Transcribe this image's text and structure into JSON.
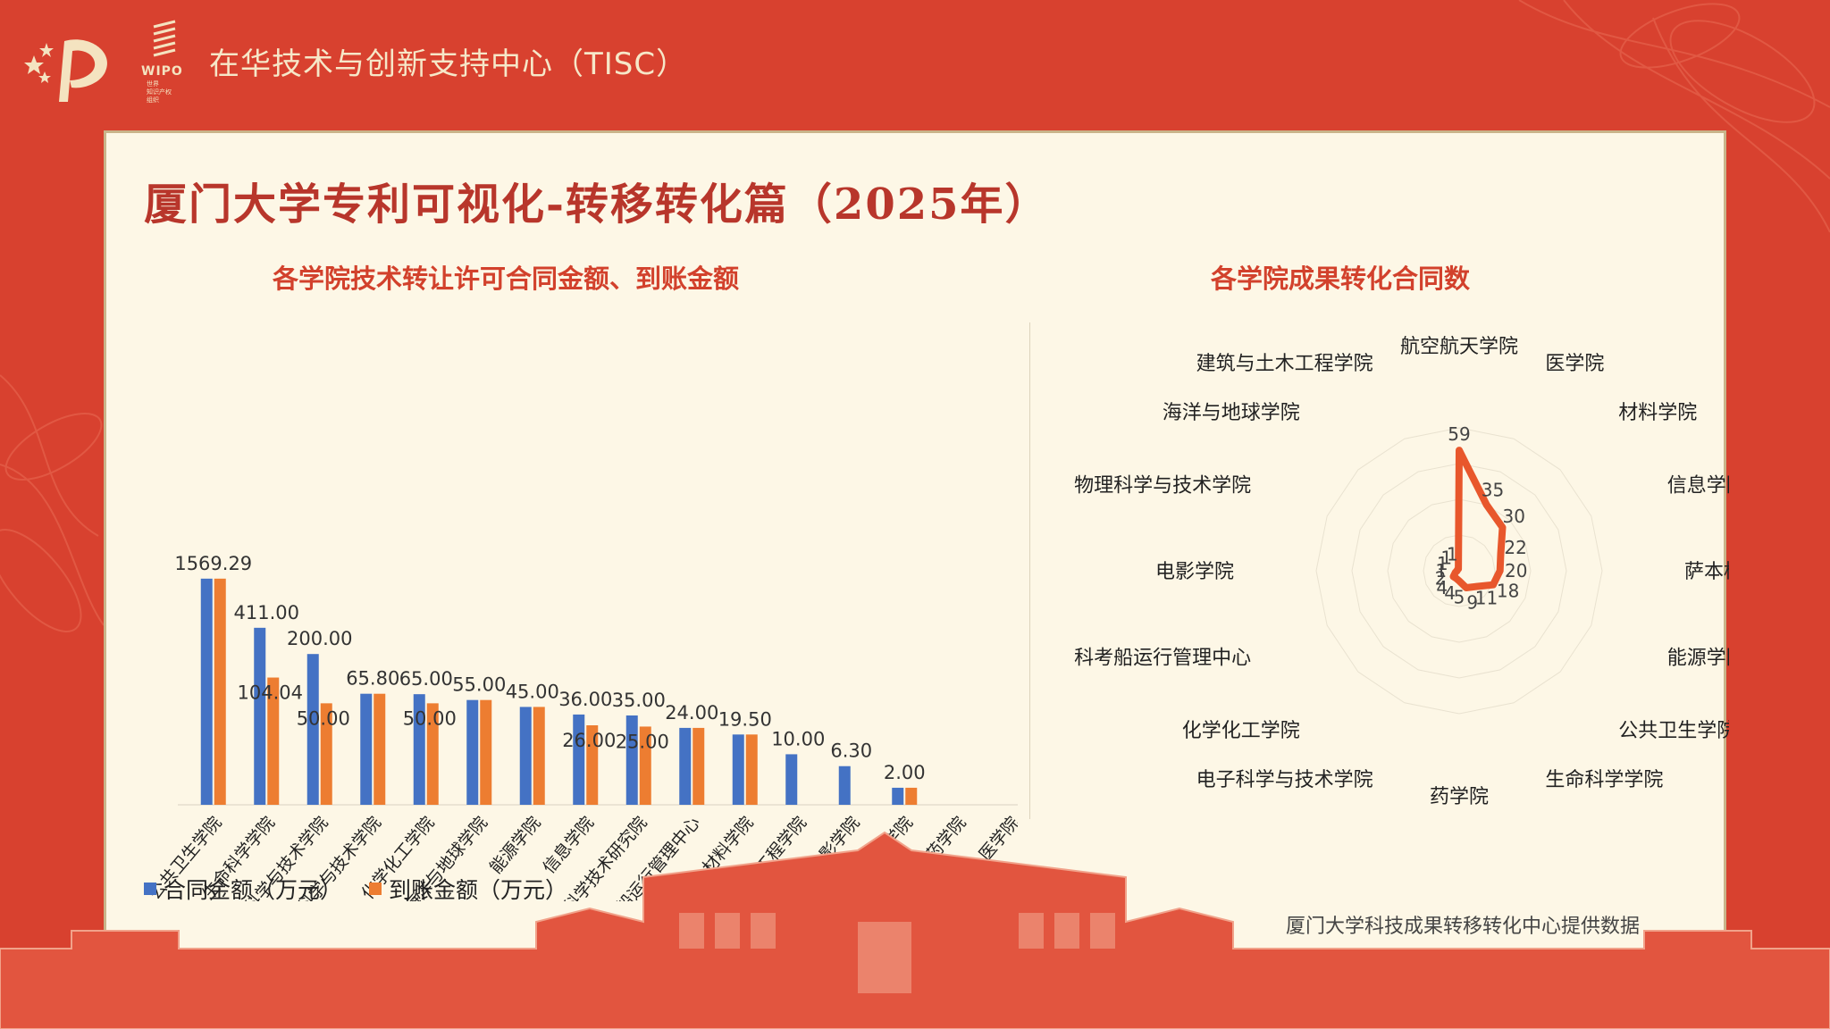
{
  "header": {
    "org_title": "在华技术与创新支持中心（TISC）",
    "wipo_label": "WIPO",
    "wipo_small": [
      "世界",
      "知识产权",
      "组织"
    ]
  },
  "page": {
    "title": "厦门大学专利可视化-转移转化篇（2025年）",
    "source_note": "厦门大学科技成果转移转化中心提供数据"
  },
  "colors": {
    "background": "#d8412f",
    "card": "#fdf7e6",
    "title_red": "#b8362b",
    "series_blue": "#4472c4",
    "series_orange": "#ed7d31",
    "radar_line": "#e8572c"
  },
  "chart_data": [
    {
      "type": "bar",
      "title": "各学院技术转让许可合同金额、到账金额",
      "categories": [
        "公共卫生学院",
        "生命科学学院",
        "物理科学与技术学院",
        "电子科学与技术学院",
        "化学化工学院",
        "海洋与地球学院",
        "能源学院",
        "信息学院",
        "萨本栋微米纳米科学技术研究院",
        "科考船运行管理中心",
        "材料学院",
        "建筑与土木工程学院",
        "电影学院",
        "航空航天学院",
        "药学院",
        "医学院"
      ],
      "series": [
        {
          "name": "合同金额（万元）",
          "values": [
            1569.29,
            411.0,
            200.0,
            65.8,
            65.0,
            55.0,
            45.0,
            36.0,
            35.0,
            24.0,
            19.5,
            10.0,
            6.3,
            2.0,
            null,
            null
          ],
          "labels": [
            "1569.29",
            "411.00",
            "200.00",
            "65.80",
            "65.00",
            "55.00",
            "45.00",
            "36.00",
            "35.00",
            "24.00",
            "19.50",
            "10.00",
            "6.30",
            "2.00",
            "",
            ""
          ]
        },
        {
          "name": "到账金额（万元）",
          "values": [
            1569.29,
            104.04,
            50.0,
            65.8,
            50.0,
            55.0,
            45.0,
            26.0,
            25.0,
            24.0,
            19.5,
            null,
            null,
            2.0,
            null,
            null
          ],
          "labels": [
            "",
            "104.04",
            "50.00",
            "",
            "50.00",
            "",
            "",
            "26.00",
            "25.00",
            "",
            "",
            "",
            "",
            "",
            "",
            ""
          ]
        }
      ],
      "legend_position": "bottom-left"
    },
    {
      "type": "radar",
      "title": "各学院成果转化合同数",
      "categories": [
        "航空航天学院",
        "医学院",
        "材料学院",
        "信息学院",
        "萨本栋微米纳米科...",
        "能源学院",
        "公共卫生学院",
        "生命科学学院",
        "药学院",
        "电子科学与技术学院",
        "化学化工学院",
        "科考船运行管理中心",
        "电影学院",
        "物理科学与技术学院",
        "海洋与地球学院",
        "建筑与土木工程学院"
      ],
      "values": [
        59,
        35,
        30,
        22,
        20,
        18,
        11,
        9,
        5,
        4,
        4,
        2,
        1,
        1,
        1,
        1
      ],
      "labels": [
        "59",
        "35",
        "30",
        "22",
        "20",
        "18",
        "11",
        "9",
        "5",
        "4",
        "4",
        "2",
        "1",
        "1",
        "1",
        "1"
      ],
      "rmax": 70
    }
  ]
}
